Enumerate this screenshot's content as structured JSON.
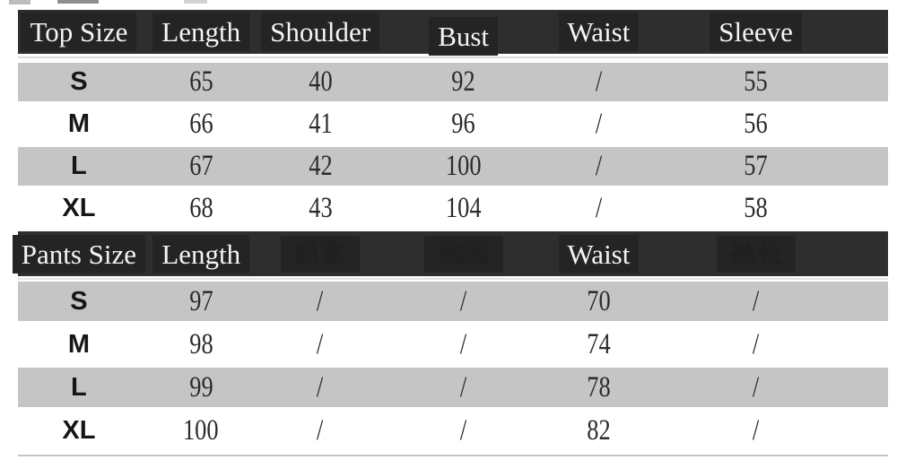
{
  "chart_data": [
    {
      "type": "table",
      "section": "top-garment",
      "columns": [
        "Top Size",
        "Length",
        "Shoulder",
        "Bust",
        "Waist",
        "Sleeve"
      ],
      "rows": [
        [
          "S",
          "65",
          "40",
          "92",
          "/",
          "55"
        ],
        [
          "M",
          "66",
          "41",
          "96",
          "/",
          "56"
        ],
        [
          "L",
          "67",
          "42",
          "100",
          "/",
          "57"
        ],
        [
          "XL",
          "68",
          "43",
          "104",
          "/",
          "58"
        ]
      ],
      "striped_row_indices": [
        0,
        2
      ],
      "header_position": "top",
      "grid": "off"
    },
    {
      "type": "table",
      "section": "pants",
      "columns": [
        "Pants Size",
        "Length",
        "",
        "",
        "Waist",
        ""
      ],
      "covered_column_remnants": {
        "2": "肩宽",
        "3": "胸围",
        "5": "袖长"
      },
      "rows": [
        [
          "S",
          "97",
          "/",
          "/",
          "70",
          "/"
        ],
        [
          "M",
          "98",
          "/",
          "/",
          "74",
          "/"
        ],
        [
          "L",
          "99",
          "/",
          "/",
          "78",
          "/"
        ],
        [
          "XL",
          "100",
          "/",
          "/",
          "82",
          "/"
        ]
      ],
      "striped_row_indices": [
        0,
        2
      ],
      "header_position": "top",
      "grid": "off"
    }
  ],
  "colors": {
    "header_bg": "#2e2e2e",
    "header_label_box_bg": "#242424",
    "header_text": "#f5f4f2",
    "stripe_row_bg": "#c5c5c5",
    "plain_row_bg": "#ffffff",
    "value_text": "#2b2b2b",
    "size_text": "#161616",
    "header_underline": "#dadada",
    "bottom_rule": "#c6c6c6"
  }
}
